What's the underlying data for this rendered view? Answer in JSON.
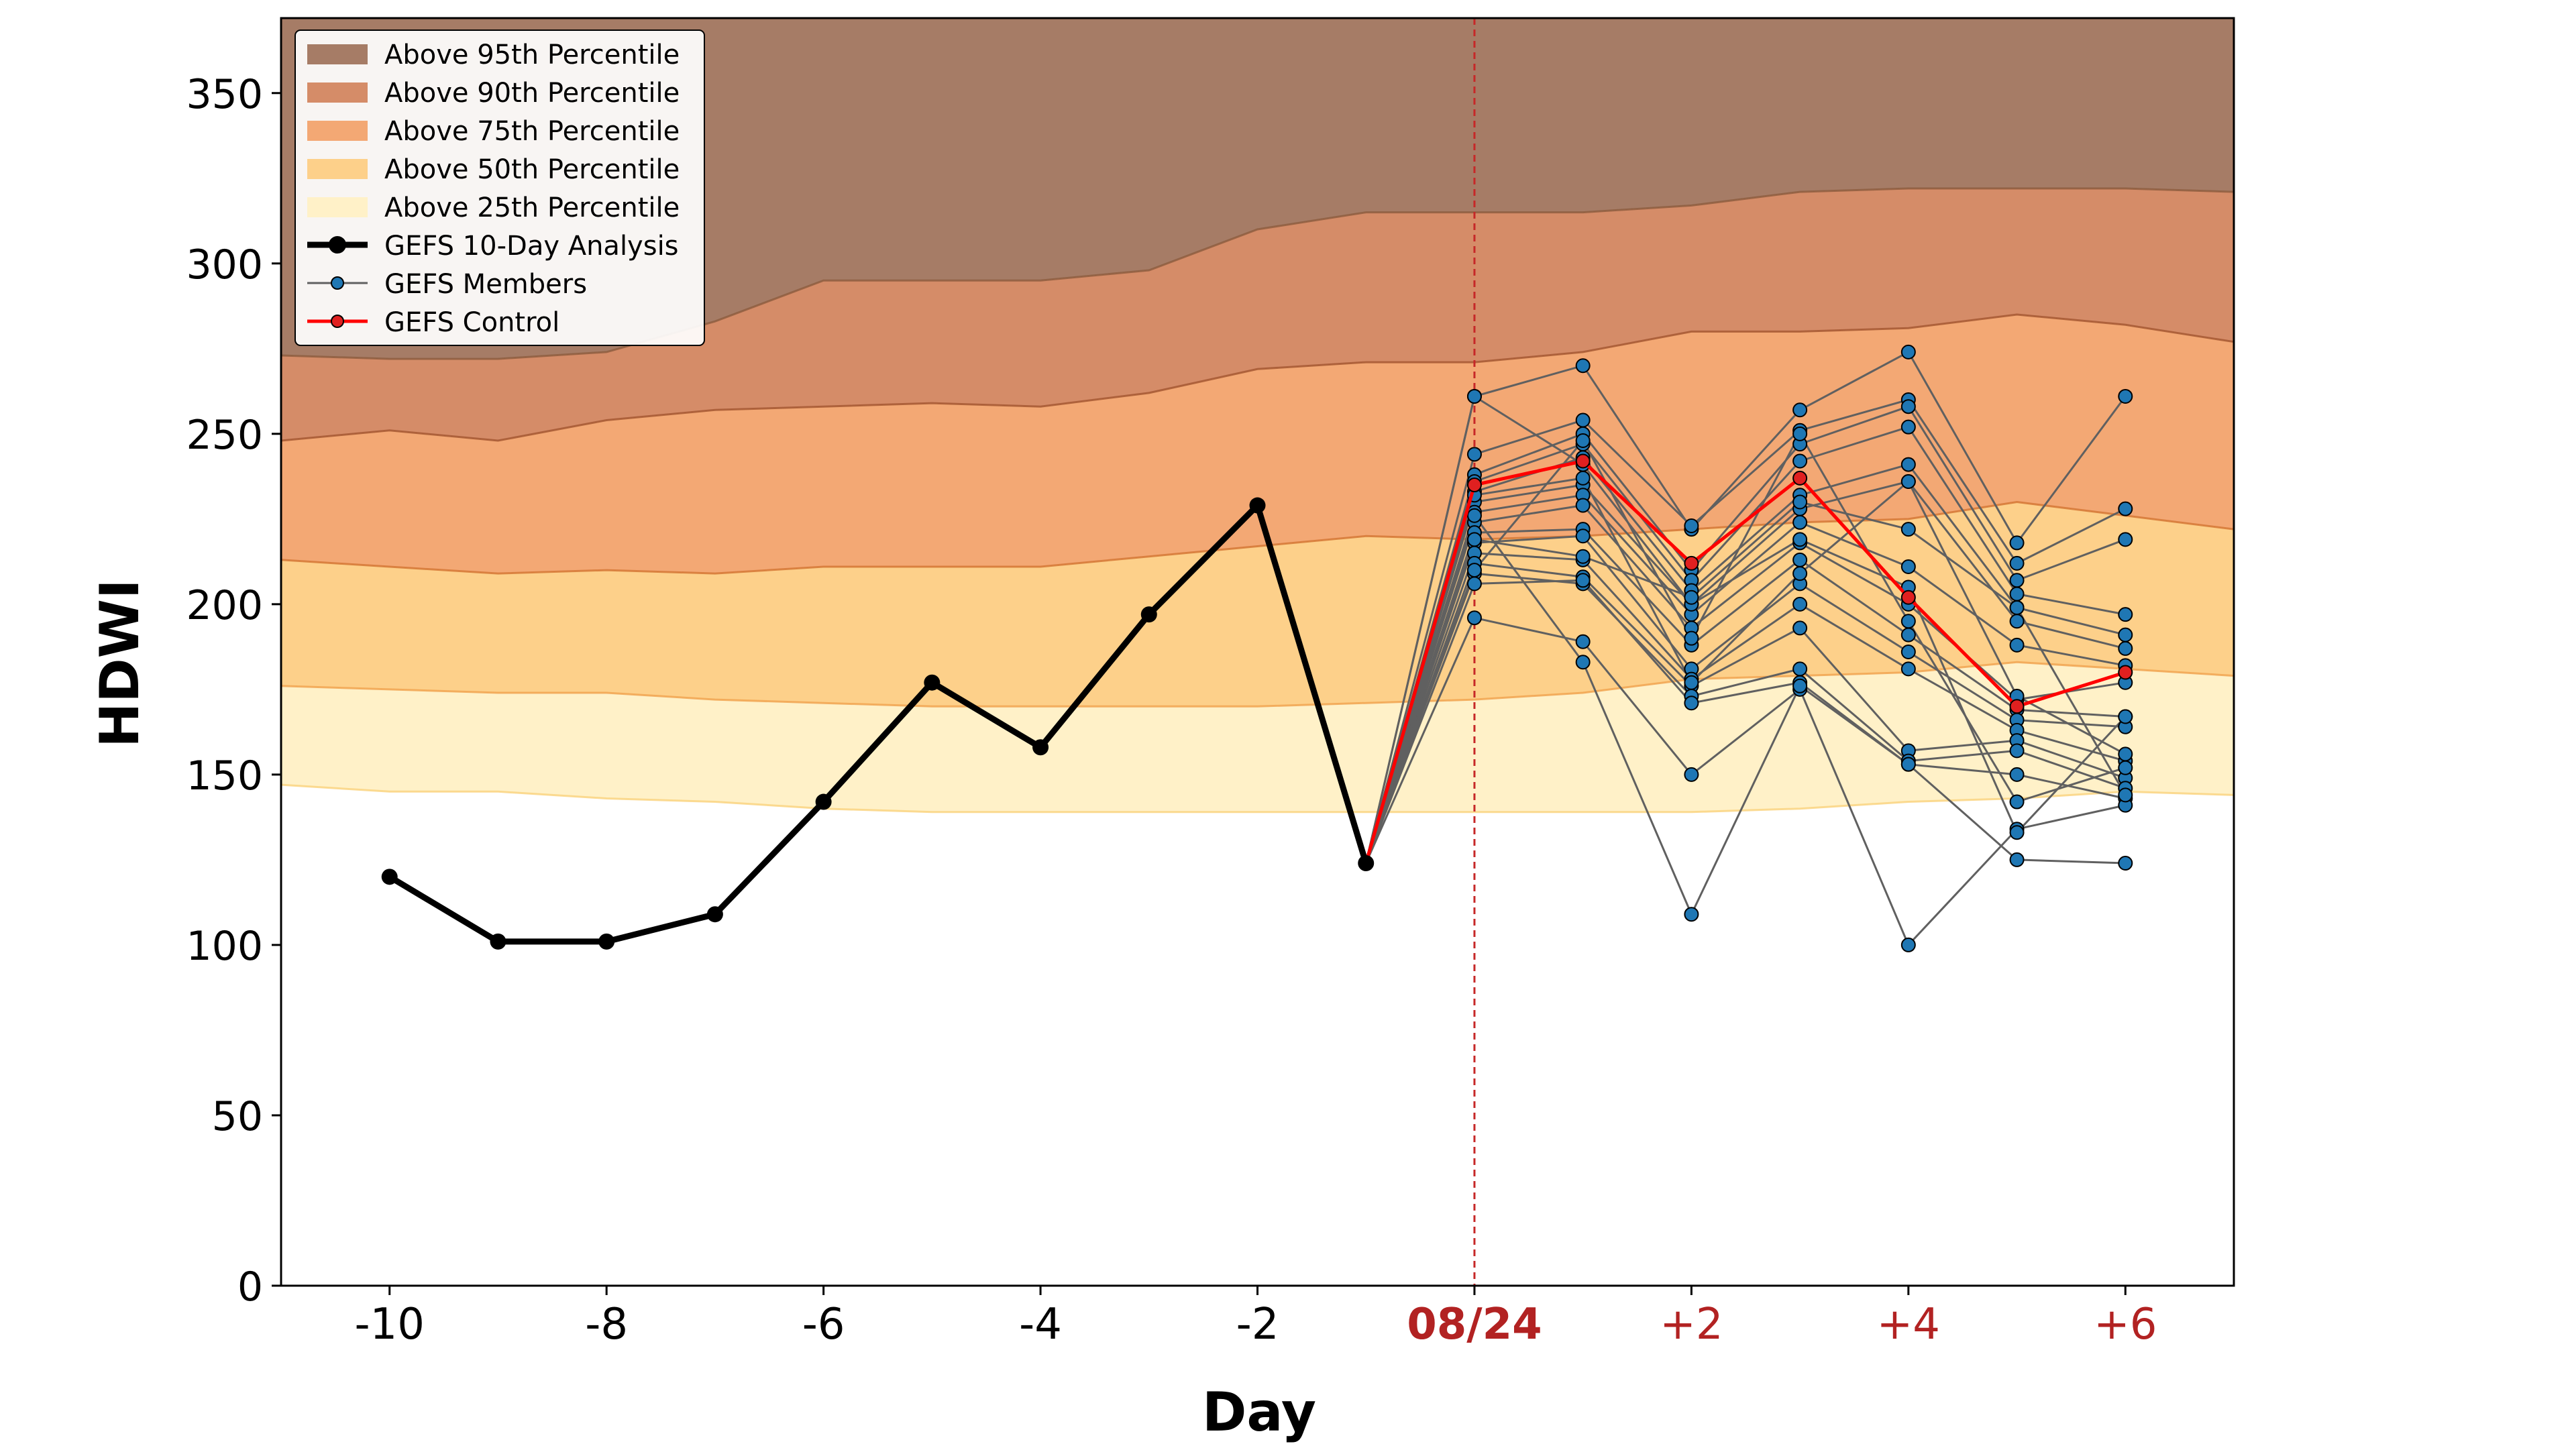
{
  "chart_data": {
    "type": "line",
    "title": "",
    "xlabel": "Day",
    "ylabel": "HDWI",
    "xlim": [
      -11,
      7
    ],
    "ylim": [
      0,
      372
    ],
    "grid": false,
    "legend_position": "top-left",
    "x_ticks": [
      {
        "x": -10,
        "label": "-10",
        "color": "#000000",
        "bold": false
      },
      {
        "x": -8,
        "label": "-8",
        "color": "#000000",
        "bold": false
      },
      {
        "x": -6,
        "label": "-6",
        "color": "#000000",
        "bold": false
      },
      {
        "x": -4,
        "label": "-4",
        "color": "#000000",
        "bold": false
      },
      {
        "x": -2,
        "label": "-2",
        "color": "#000000",
        "bold": false
      },
      {
        "x": 0,
        "label": "08/24",
        "color": "#b22222",
        "bold": true
      },
      {
        "x": 2,
        "label": "+2",
        "color": "#b22222",
        "bold": false
      },
      {
        "x": 4,
        "label": "+4",
        "color": "#b22222",
        "bold": false
      },
      {
        "x": 6,
        "label": "+6",
        "color": "#b22222",
        "bold": false
      }
    ],
    "y_ticks": [
      0,
      50,
      100,
      150,
      200,
      250,
      300,
      350
    ],
    "forecast_start_x": 0,
    "percentile_x": [
      -11,
      -10,
      -9,
      -8,
      -7,
      -6,
      -5,
      -4,
      -3,
      -2,
      -1,
      0,
      1,
      2,
      3,
      4,
      5,
      6,
      7
    ],
    "percentile_bands": [
      {
        "name": "Above 95th Percentile",
        "fill": "#a67c66",
        "edge": "#8b5a3c",
        "values": [
          372,
          372,
          372,
          372,
          372,
          372,
          372,
          372,
          372,
          372,
          372,
          372,
          372,
          372,
          372,
          372,
          372,
          372,
          372
        ]
      },
      {
        "name": "Above 90th Percentile",
        "fill": "#d58c68",
        "edge": "#a0522d",
        "values": [
          273,
          272,
          272,
          274,
          283,
          295,
          295,
          295,
          298,
          310,
          315,
          315,
          315,
          317,
          321,
          322,
          322,
          322,
          321
        ]
      },
      {
        "name": "Above 75th Percentile",
        "fill": "#f3a874",
        "edge": "#d2722f",
        "values": [
          248,
          251,
          248,
          254,
          257,
          258,
          259,
          258,
          262,
          269,
          271,
          271,
          274,
          280,
          280,
          281,
          285,
          282,
          277
        ]
      },
      {
        "name": "Above 50th Percentile",
        "fill": "#fdd08a",
        "edge": "#f0a04a",
        "values": [
          213,
          211,
          209,
          210,
          209,
          211,
          211,
          211,
          214,
          217,
          220,
          219,
          220,
          222,
          224,
          225,
          230,
          226,
          222
        ]
      },
      {
        "name": "Above 25th Percentile",
        "fill": "#fff1c8",
        "edge": "#fad27a",
        "values": [
          176,
          175,
          174,
          174,
          172,
          171,
          170,
          170,
          170,
          170,
          171,
          172,
          174,
          178,
          179,
          180,
          183,
          181,
          179
        ]
      },
      {
        "name": "",
        "fill": "#ffffff",
        "edge": "#f9cf86",
        "values": [
          147,
          145,
          145,
          143,
          142,
          140,
          139,
          139,
          139,
          139,
          139,
          139,
          139,
          139,
          140,
          142,
          143,
          145,
          144
        ]
      }
    ],
    "analysis": {
      "name": "GEFS 10-Day Analysis",
      "color": "#000000",
      "x": [
        -10,
        -9,
        -8,
        -7,
        -6,
        -5,
        -4,
        -3,
        -2,
        -1
      ],
      "y": [
        120,
        101,
        101,
        109,
        142,
        177,
        158,
        197,
        229,
        124
      ]
    },
    "control": {
      "name": "GEFS Control",
      "color": "#ff0000",
      "x": [
        -1,
        0,
        1,
        2,
        3,
        4,
        5,
        6
      ],
      "y": [
        124,
        235,
        242,
        212,
        237,
        202,
        170,
        180
      ]
    },
    "members": {
      "name": "GEFS Members",
      "line_color": "#606060",
      "marker_color": "#1f77b4",
      "x": [
        -1,
        0,
        1,
        2,
        3,
        4,
        5,
        6
      ],
      "series": [
        [
          124,
          261,
          270,
          222,
          257,
          274,
          218,
          261
        ],
        [
          124,
          244,
          254,
          223,
          251,
          260,
          212,
          228
        ],
        [
          124,
          238,
          250,
          210,
          247,
          258,
          207,
          219
        ],
        [
          124,
          236,
          247,
          207,
          242,
          252,
          203,
          197
        ],
        [
          124,
          233,
          243,
          204,
          232,
          241,
          199,
          191
        ],
        [
          124,
          230,
          235,
          200,
          228,
          236,
          195,
          187
        ],
        [
          124,
          227,
          232,
          197,
          224,
          211,
          188,
          182
        ],
        [
          124,
          224,
          229,
          193,
          218,
          200,
          172,
          177
        ],
        [
          124,
          221,
          222,
          188,
          213,
          191,
          169,
          167
        ],
        [
          124,
          218,
          220,
          181,
          206,
          186,
          166,
          164
        ],
        [
          124,
          215,
          213,
          178,
          200,
          181,
          163,
          154
        ],
        [
          124,
          212,
          208,
          176,
          193,
          157,
          160,
          149
        ],
        [
          124,
          209,
          206,
          173,
          181,
          154,
          157,
          146
        ],
        [
          124,
          206,
          207,
          171,
          177,
          153,
          150,
          143
        ],
        [
          124,
          196,
          189,
          150,
          175,
          100,
          134,
          141
        ],
        [
          124,
          226,
          183,
          109,
          176,
          153,
          125,
          124
        ],
        [
          124,
          261,
          241,
          200,
          219,
          205,
          133,
          167
        ],
        [
          124,
          232,
          237,
          177,
          209,
          236,
          173,
          156
        ],
        [
          124,
          219,
          214,
          202,
          230,
          222,
          199,
          144
        ],
        [
          124,
          210,
          248,
          190,
          250,
          195,
          142,
          152
        ]
      ]
    }
  }
}
